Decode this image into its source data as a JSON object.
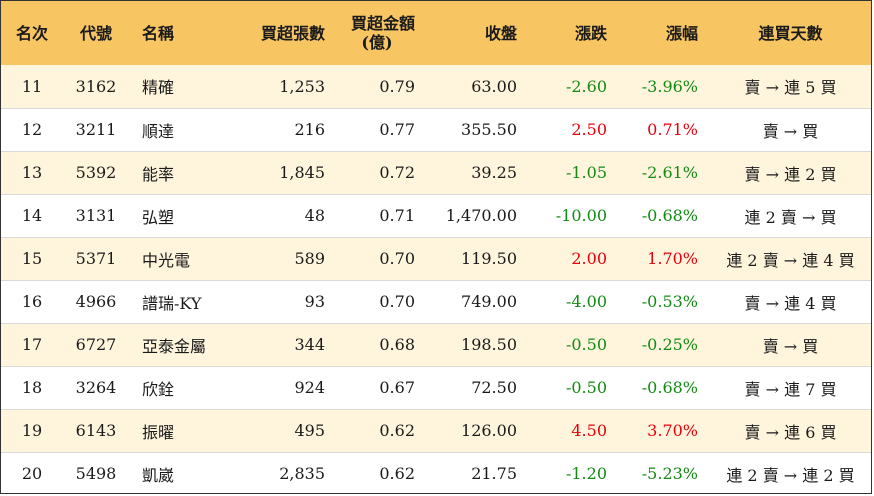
{
  "headers": {
    "rank": "名次",
    "code": "代號",
    "name": "名稱",
    "net_lots": "買超張數",
    "net_amount_line1": "買超金額",
    "net_amount_line2": "(億)",
    "close": "收盤",
    "change": "漲跌",
    "pct": "漲幅",
    "streak": "連買天數"
  },
  "colors": {
    "header_bg": "#f7c562",
    "stripe_bg": "#fff4dc",
    "up": "#e8000b",
    "down": "#138a13"
  },
  "rows": [
    {
      "rank": "11",
      "code": "3162",
      "name": "精確",
      "net_lots": "1,253",
      "net_amount": "0.79",
      "close": "63.00",
      "change": "-2.60",
      "pct": "-3.96%",
      "streak": "賣 → 連 5 買",
      "direction": "down"
    },
    {
      "rank": "12",
      "code": "3211",
      "name": "順達",
      "net_lots": "216",
      "net_amount": "0.77",
      "close": "355.50",
      "change": "2.50",
      "pct": "0.71%",
      "streak": "賣 → 買",
      "direction": "up"
    },
    {
      "rank": "13",
      "code": "5392",
      "name": "能率",
      "net_lots": "1,845",
      "net_amount": "0.72",
      "close": "39.25",
      "change": "-1.05",
      "pct": "-2.61%",
      "streak": "賣 → 連 2 買",
      "direction": "down"
    },
    {
      "rank": "14",
      "code": "3131",
      "name": "弘塑",
      "net_lots": "48",
      "net_amount": "0.71",
      "close": "1,470.00",
      "change": "-10.00",
      "pct": "-0.68%",
      "streak": "連 2 賣 → 買",
      "direction": "down"
    },
    {
      "rank": "15",
      "code": "5371",
      "name": "中光電",
      "net_lots": "589",
      "net_amount": "0.70",
      "close": "119.50",
      "change": "2.00",
      "pct": "1.70%",
      "streak": "連 2 賣 → 連 4 買",
      "direction": "up"
    },
    {
      "rank": "16",
      "code": "4966",
      "name": "譜瑞-KY",
      "net_lots": "93",
      "net_amount": "0.70",
      "close": "749.00",
      "change": "-4.00",
      "pct": "-0.53%",
      "streak": "賣 → 連 4 買",
      "direction": "down"
    },
    {
      "rank": "17",
      "code": "6727",
      "name": "亞泰金屬",
      "net_lots": "344",
      "net_amount": "0.68",
      "close": "198.50",
      "change": "-0.50",
      "pct": "-0.25%",
      "streak": "賣 → 買",
      "direction": "down"
    },
    {
      "rank": "18",
      "code": "3264",
      "name": "欣銓",
      "net_lots": "924",
      "net_amount": "0.67",
      "close": "72.50",
      "change": "-0.50",
      "pct": "-0.68%",
      "streak": "賣 → 連 7 買",
      "direction": "down"
    },
    {
      "rank": "19",
      "code": "6143",
      "name": "振曜",
      "net_lots": "495",
      "net_amount": "0.62",
      "close": "126.00",
      "change": "4.50",
      "pct": "3.70%",
      "streak": "賣 → 連 6 買",
      "direction": "up"
    },
    {
      "rank": "20",
      "code": "5498",
      "name": "凱崴",
      "net_lots": "2,835",
      "net_amount": "0.62",
      "close": "21.75",
      "change": "-1.20",
      "pct": "-5.23%",
      "streak": "連 2 賣 → 連 2 買",
      "direction": "down"
    }
  ]
}
